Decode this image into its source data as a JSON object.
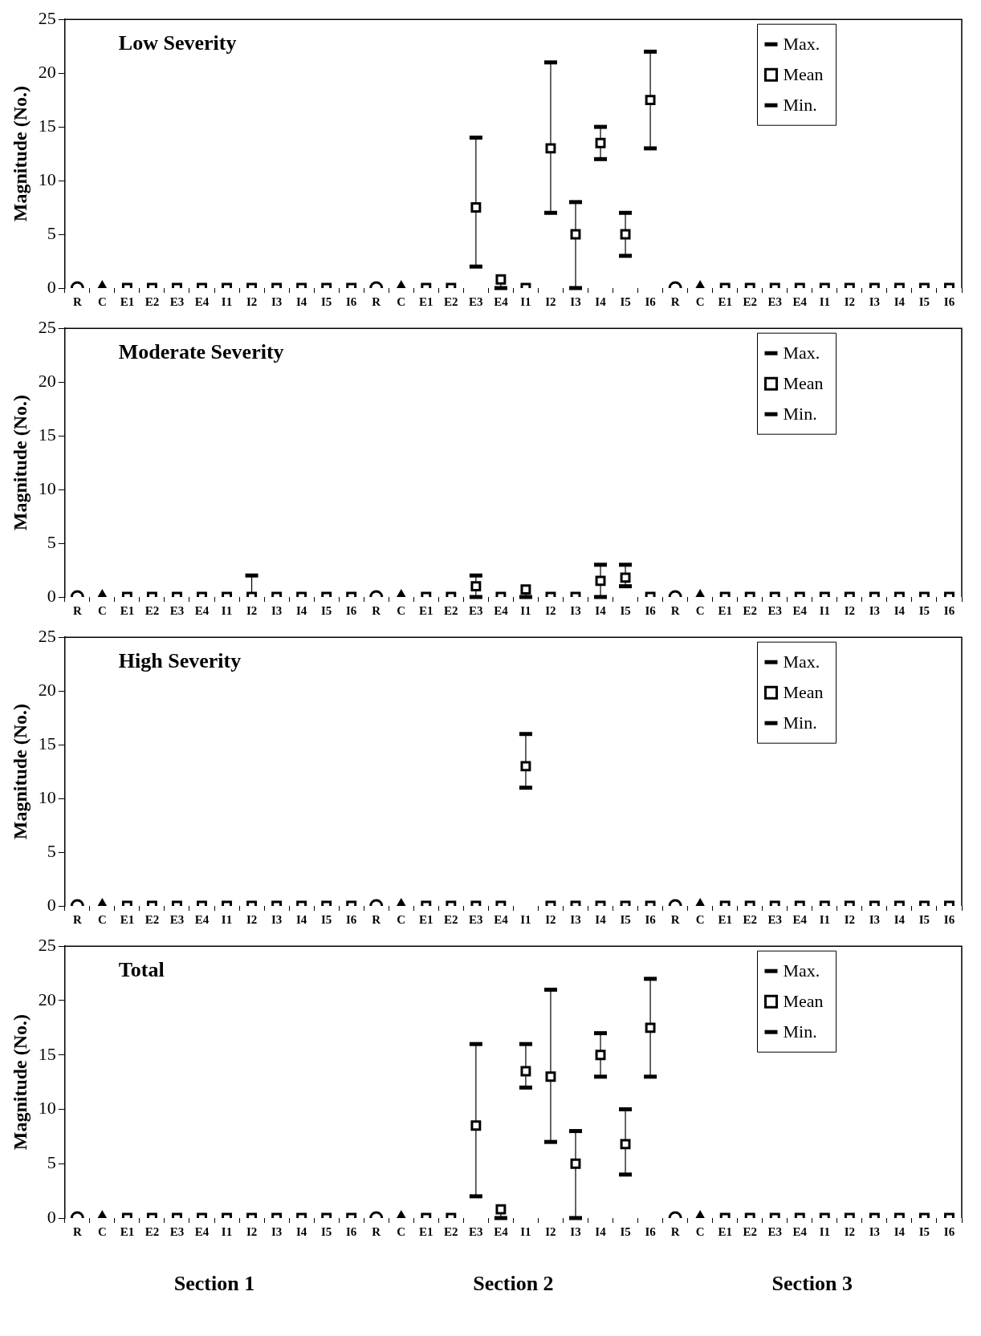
{
  "chart_data": [
    {
      "type": "scatter",
      "title": "Low Severity",
      "ylabel": "Magnitude (No.)",
      "categories": [
        "R",
        "C",
        "E1",
        "E2",
        "E3",
        "E4",
        "I1",
        "I2",
        "I3",
        "I4",
        "I5",
        "I6",
        "R",
        "C",
        "E1",
        "E2",
        "E3",
        "E4",
        "I1",
        "I2",
        "I3",
        "I4",
        "I5",
        "I6",
        "R",
        "C",
        "E1",
        "E2",
        "E3",
        "E4",
        "I1",
        "I2",
        "I3",
        "I4",
        "I5",
        "I6"
      ],
      "ylim": [
        0,
        25
      ],
      "yticks": [
        0,
        5,
        10,
        15,
        20,
        25
      ],
      "grid": false,
      "legend": "top right",
      "annotations": [
        "Max.",
        "Min."
      ],
      "series": [
        {
          "color": "#000000",
          "marker": "circle",
          "values": [
            0,
            null,
            null,
            null,
            null,
            null,
            null,
            null,
            null,
            null,
            null,
            null,
            0,
            null,
            null,
            null,
            null,
            null,
            null,
            null,
            null,
            null,
            null,
            null,
            0,
            null,
            null,
            null,
            null,
            null,
            null,
            null,
            null,
            null,
            null,
            null
          ]
        },
        {
          "color": "#000000",
          "marker": "triangle",
          "values": [
            null,
            0,
            null,
            null,
            null,
            null,
            null,
            null,
            null,
            null,
            null,
            null,
            null,
            0,
            null,
            null,
            null,
            null,
            null,
            null,
            null,
            null,
            null,
            null,
            null,
            0,
            null,
            null,
            null,
            null,
            null,
            null,
            null,
            null,
            null,
            null
          ]
        },
        {
          "name": "Mean",
          "color": "#000000",
          "marker": "square",
          "values": [
            null,
            null,
            0,
            0,
            0,
            0,
            0,
            0,
            0,
            0,
            0,
            0,
            null,
            null,
            0,
            0,
            7.5,
            0.8,
            0,
            13,
            5,
            13.5,
            5,
            17.5,
            null,
            null,
            0,
            0,
            0,
            0,
            0,
            0,
            0,
            0,
            0,
            0
          ],
          "errors": [
            null,
            null,
            [
              0,
              0
            ],
            [
              0,
              0
            ],
            [
              0,
              0
            ],
            [
              0,
              0
            ],
            [
              0,
              0
            ],
            [
              0,
              0
            ],
            [
              0,
              0
            ],
            [
              0,
              0
            ],
            [
              0,
              0
            ],
            [
              0,
              0
            ],
            null,
            null,
            [
              0,
              0
            ],
            [
              0,
              0
            ],
            [
              2,
              14
            ],
            [
              0,
              0.8
            ],
            [
              0,
              0
            ],
            [
              7,
              21
            ],
            [
              0,
              8
            ],
            [
              12,
              15
            ],
            [
              3,
              7
            ],
            [
              13,
              22
            ],
            null,
            null,
            [
              0,
              0
            ],
            [
              0,
              0
            ],
            [
              0,
              0
            ],
            [
              0,
              0
            ],
            [
              0,
              0
            ],
            [
              0,
              0
            ],
            [
              0,
              0
            ],
            [
              0,
              0
            ],
            [
              0,
              0
            ],
            [
              0,
              0
            ]
          ]
        }
      ]
    },
    {
      "type": "scatter",
      "title": "Moderate Severity",
      "ylabel": "Magnitude (No.)",
      "categories": [
        "R",
        "C",
        "E1",
        "E2",
        "E3",
        "E4",
        "I1",
        "I2",
        "I3",
        "I4",
        "I5",
        "I6",
        "R",
        "C",
        "E1",
        "E2",
        "E3",
        "E4",
        "I1",
        "I2",
        "I3",
        "I4",
        "I5",
        "I6",
        "R",
        "C",
        "E1",
        "E2",
        "E3",
        "E4",
        "I1",
        "I2",
        "I3",
        "I4",
        "I5",
        "I6"
      ],
      "ylim": [
        0,
        25
      ],
      "yticks": [
        0,
        5,
        10,
        15,
        20,
        25
      ],
      "grid": false,
      "legend": "top right",
      "annotations": [
        "Max.",
        "Min."
      ],
      "series": [
        {
          "color": "#000000",
          "marker": "circle",
          "values": [
            0,
            null,
            null,
            null,
            null,
            null,
            null,
            null,
            null,
            null,
            null,
            null,
            0,
            null,
            null,
            null,
            null,
            null,
            null,
            null,
            null,
            null,
            null,
            null,
            0,
            null,
            null,
            null,
            null,
            null,
            null,
            null,
            null,
            null,
            null,
            null
          ]
        },
        {
          "color": "#000000",
          "marker": "triangle",
          "values": [
            null,
            0,
            null,
            null,
            null,
            null,
            null,
            null,
            null,
            null,
            null,
            null,
            null,
            0,
            null,
            null,
            null,
            null,
            null,
            null,
            null,
            null,
            null,
            null,
            null,
            0,
            null,
            null,
            null,
            null,
            null,
            null,
            null,
            null,
            null,
            null
          ]
        },
        {
          "name": "Mean",
          "color": "#000000",
          "marker": "square",
          "values": [
            null,
            null,
            0,
            0,
            0,
            0,
            0,
            0,
            0,
            0,
            0,
            0,
            null,
            null,
            0,
            0,
            1,
            0,
            0.7,
            0,
            0,
            1.5,
            1.8,
            0,
            null,
            null,
            0,
            0,
            0,
            0,
            0,
            0,
            0,
            0,
            0,
            0
          ],
          "errors": [
            null,
            null,
            [
              0,
              0
            ],
            [
              0,
              0
            ],
            [
              0,
              0
            ],
            [
              0,
              0
            ],
            [
              0,
              0
            ],
            [
              0,
              2
            ],
            [
              0,
              0
            ],
            [
              0,
              0
            ],
            [
              0,
              0
            ],
            [
              0,
              0
            ],
            null,
            null,
            [
              0,
              0
            ],
            [
              0,
              0
            ],
            [
              0,
              2
            ],
            [
              0,
              0
            ],
            [
              0,
              0.7
            ],
            [
              0,
              0
            ],
            [
              0,
              0
            ],
            [
              0,
              3
            ],
            [
              1,
              3
            ],
            [
              0,
              0
            ],
            null,
            null,
            [
              0,
              0
            ],
            [
              0,
              0
            ],
            [
              0,
              0
            ],
            [
              0,
              0
            ],
            [
              0,
              0
            ],
            [
              0,
              0
            ],
            [
              0,
              0
            ],
            [
              0,
              0
            ],
            [
              0,
              0
            ],
            [
              0,
              0
            ]
          ]
        }
      ]
    },
    {
      "type": "scatter",
      "title": "High Severity",
      "ylabel": "Magnitude (No.)",
      "categories": [
        "R",
        "C",
        "E1",
        "E2",
        "E3",
        "E4",
        "I1",
        "I2",
        "I3",
        "I4",
        "I5",
        "I6",
        "R",
        "C",
        "E1",
        "E2",
        "E3",
        "E4",
        "I1",
        "I2",
        "I3",
        "I4",
        "I5",
        "I6",
        "R",
        "C",
        "E1",
        "E2",
        "E3",
        "E4",
        "I1",
        "I2",
        "I3",
        "I4",
        "I5",
        "I6"
      ],
      "ylim": [
        0,
        25
      ],
      "yticks": [
        0,
        5,
        10,
        15,
        20,
        25
      ],
      "grid": false,
      "legend": "top right",
      "annotations": [
        "Max.",
        "Min."
      ],
      "series": [
        {
          "color": "#000000",
          "marker": "circle",
          "values": [
            0,
            null,
            null,
            null,
            null,
            null,
            null,
            null,
            null,
            null,
            null,
            null,
            0,
            null,
            null,
            null,
            null,
            null,
            null,
            null,
            null,
            null,
            null,
            null,
            0,
            null,
            null,
            null,
            null,
            null,
            null,
            null,
            null,
            null,
            null,
            null
          ]
        },
        {
          "color": "#000000",
          "marker": "triangle",
          "values": [
            null,
            0,
            null,
            null,
            null,
            null,
            null,
            null,
            null,
            null,
            null,
            null,
            null,
            0,
            null,
            null,
            null,
            null,
            null,
            null,
            null,
            null,
            null,
            null,
            null,
            0,
            null,
            null,
            null,
            null,
            null,
            null,
            null,
            null,
            null,
            null
          ]
        },
        {
          "name": "Mean",
          "color": "#000000",
          "marker": "square",
          "values": [
            null,
            null,
            0,
            0,
            0,
            0,
            0,
            0,
            0,
            0,
            0,
            0,
            null,
            null,
            0,
            0,
            0,
            0,
            13,
            0,
            0,
            0,
            0,
            0,
            null,
            null,
            0,
            0,
            0,
            0,
            0,
            0,
            0,
            0,
            0,
            0
          ],
          "errors": [
            null,
            null,
            [
              0,
              0
            ],
            [
              0,
              0
            ],
            [
              0,
              0
            ],
            [
              0,
              0
            ],
            [
              0,
              0
            ],
            [
              0,
              0
            ],
            [
              0,
              0
            ],
            [
              0,
              0
            ],
            [
              0,
              0
            ],
            [
              0,
              0
            ],
            null,
            null,
            [
              0,
              0
            ],
            [
              0,
              0
            ],
            [
              0,
              0
            ],
            [
              0,
              0
            ],
            [
              11,
              16
            ],
            [
              0,
              0
            ],
            [
              0,
              0
            ],
            [
              0,
              0
            ],
            [
              0,
              0
            ],
            [
              0,
              0
            ],
            null,
            null,
            [
              0,
              0
            ],
            [
              0,
              0
            ],
            [
              0,
              0
            ],
            [
              0,
              0
            ],
            [
              0,
              0
            ],
            [
              0,
              0
            ],
            [
              0,
              0
            ],
            [
              0,
              0
            ],
            [
              0,
              0
            ],
            [
              0,
              0
            ]
          ]
        }
      ]
    },
    {
      "type": "scatter",
      "title": "Total",
      "ylabel": "Magnitude (No.)",
      "categories": [
        "R",
        "C",
        "E1",
        "E2",
        "E3",
        "E4",
        "I1",
        "I2",
        "I3",
        "I4",
        "I5",
        "I6",
        "R",
        "C",
        "E1",
        "E2",
        "E3",
        "E4",
        "I1",
        "I2",
        "I3",
        "I4",
        "I5",
        "I6",
        "R",
        "C",
        "E1",
        "E2",
        "E3",
        "E4",
        "I1",
        "I2",
        "I3",
        "I4",
        "I5",
        "I6"
      ],
      "ylim": [
        0,
        25
      ],
      "yticks": [
        0,
        5,
        10,
        15,
        20,
        25
      ],
      "grid": false,
      "legend": "top right",
      "annotations": [
        "Max.",
        "Min.",
        "Section 1",
        "Section 2",
        "Section 3"
      ],
      "series": [
        {
          "color": "#000000",
          "marker": "circle",
          "values": [
            0,
            null,
            null,
            null,
            null,
            null,
            null,
            null,
            null,
            null,
            null,
            null,
            0,
            null,
            null,
            null,
            null,
            null,
            null,
            null,
            null,
            null,
            null,
            null,
            0,
            null,
            null,
            null,
            null,
            null,
            null,
            null,
            null,
            null,
            null,
            null
          ]
        },
        {
          "color": "#000000",
          "marker": "triangle",
          "values": [
            null,
            0,
            null,
            null,
            null,
            null,
            null,
            null,
            null,
            null,
            null,
            null,
            null,
            0,
            null,
            null,
            null,
            null,
            null,
            null,
            null,
            null,
            null,
            null,
            null,
            0,
            null,
            null,
            null,
            null,
            null,
            null,
            null,
            null,
            null,
            null
          ]
        },
        {
          "name": "Mean",
          "color": "#000000",
          "marker": "square",
          "values": [
            null,
            null,
            0,
            0,
            0,
            0,
            0,
            0,
            0,
            0,
            0,
            0,
            null,
            null,
            0,
            0,
            8.5,
            0.8,
            13.5,
            13,
            5,
            15,
            6.8,
            17.5,
            null,
            null,
            0,
            0,
            0,
            0,
            0,
            0,
            0,
            0,
            0,
            0
          ],
          "errors": [
            null,
            null,
            [
              0,
              0
            ],
            [
              0,
              0
            ],
            [
              0,
              0
            ],
            [
              0,
              0
            ],
            [
              0,
              0
            ],
            [
              0,
              0
            ],
            [
              0,
              0
            ],
            [
              0,
              0
            ],
            [
              0,
              0
            ],
            [
              0,
              0
            ],
            null,
            null,
            [
              0,
              0
            ],
            [
              0,
              0
            ],
            [
              2,
              16
            ],
            [
              0,
              0.8
            ],
            [
              12,
              16
            ],
            [
              7,
              21
            ],
            [
              0,
              8
            ],
            [
              13,
              17
            ],
            [
              4,
              10
            ],
            [
              13,
              22
            ],
            null,
            null,
            [
              0,
              0
            ],
            [
              0,
              0
            ],
            [
              0,
              0
            ],
            [
              0,
              0
            ],
            [
              0,
              0
            ],
            [
              0,
              0
            ],
            [
              0,
              0
            ],
            [
              0,
              0
            ],
            [
              0,
              0
            ],
            [
              0,
              0
            ]
          ]
        }
      ]
    }
  ]
}
